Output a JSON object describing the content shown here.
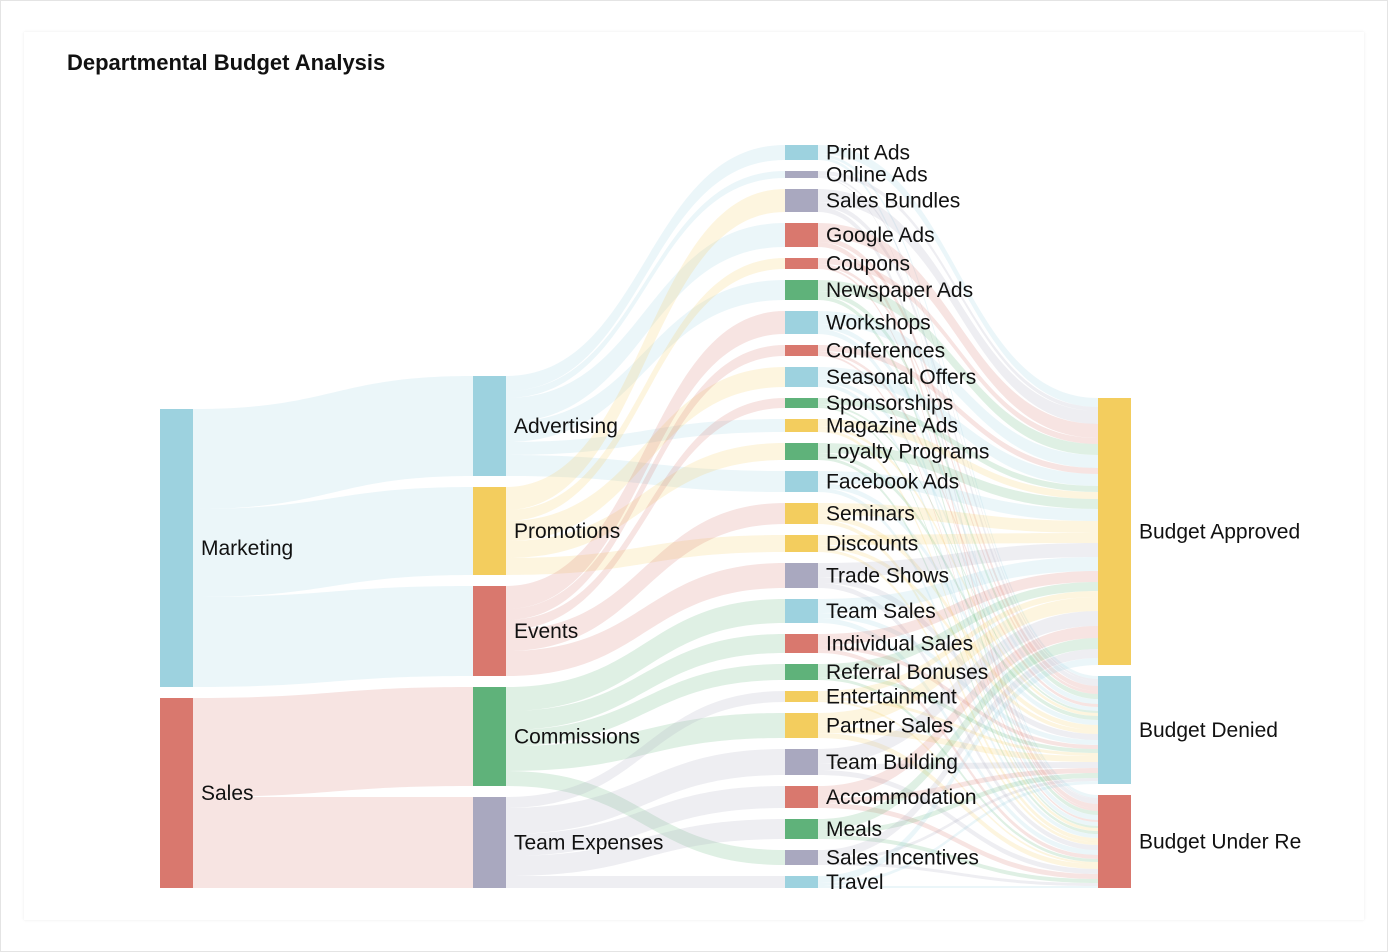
{
  "chart_data": {
    "type": "sankey",
    "title": "Departmental Budget Analysis",
    "nodes": [
      {
        "name": "Marketing",
        "color": "#9dd2df"
      },
      {
        "name": "Sales",
        "color": "#d9786e"
      },
      {
        "name": "Advertising",
        "color": "#9dd2df"
      },
      {
        "name": "Promotions",
        "color": "#f3cd5e"
      },
      {
        "name": "Events",
        "color": "#d9786e"
      },
      {
        "name": "Commissions",
        "color": "#5fb27a"
      },
      {
        "name": "Team Expenses",
        "color": "#a9a8bf"
      },
      {
        "name": "Print Ads",
        "color": "#9dd2df"
      },
      {
        "name": "Online Ads",
        "color": "#a9a8bf"
      },
      {
        "name": "Sales Bundles",
        "color": "#a9a8bf"
      },
      {
        "name": "Google Ads",
        "color": "#d9786e"
      },
      {
        "name": "Coupons",
        "color": "#d9786e"
      },
      {
        "name": "Newspaper Ads",
        "color": "#5fb27a"
      },
      {
        "name": "Workshops",
        "color": "#9dd2df"
      },
      {
        "name": "Conferences",
        "color": "#d9786e"
      },
      {
        "name": "Seasonal Offers",
        "color": "#9dd2df"
      },
      {
        "name": "Sponsorships",
        "color": "#5fb27a"
      },
      {
        "name": "Magazine Ads",
        "color": "#f3cd5e"
      },
      {
        "name": "Loyalty Programs",
        "color": "#5fb27a"
      },
      {
        "name": "Facebook Ads",
        "color": "#9dd2df"
      },
      {
        "name": "Seminars",
        "color": "#f3cd5e"
      },
      {
        "name": "Discounts",
        "color": "#f3cd5e"
      },
      {
        "name": "Trade Shows",
        "color": "#a9a8bf"
      },
      {
        "name": "Team Sales",
        "color": "#9dd2df"
      },
      {
        "name": "Individual Sales",
        "color": "#d9786e"
      },
      {
        "name": "Referral Bonuses",
        "color": "#5fb27a"
      },
      {
        "name": "Entertainment",
        "color": "#f3cd5e"
      },
      {
        "name": "Partner Sales",
        "color": "#f3cd5e"
      },
      {
        "name": "Team Building",
        "color": "#a9a8bf"
      },
      {
        "name": "Accommodation",
        "color": "#d9786e"
      },
      {
        "name": "Meals",
        "color": "#5fb27a"
      },
      {
        "name": "Sales Incentives",
        "color": "#a9a8bf"
      },
      {
        "name": "Travel",
        "color": "#9dd2df"
      },
      {
        "name": "Budget Approved",
        "color": "#f3cd5e"
      },
      {
        "name": "Budget Denied",
        "color": "#9dd2df"
      },
      {
        "name": "Budget Under Re",
        "color": "#d9786e"
      }
    ],
    "links": [
      {
        "source": "Marketing",
        "target": "Advertising",
        "value": 100
      },
      {
        "source": "Marketing",
        "target": "Promotions",
        "value": 88
      },
      {
        "source": "Marketing",
        "target": "Events",
        "value": 90
      },
      {
        "source": "Sales",
        "target": "Commissions",
        "value": 99
      },
      {
        "source": "Sales",
        "target": "Team Expenses",
        "value": 91
      },
      {
        "source": "Advertising",
        "target": "Print Ads",
        "value": 15
      },
      {
        "source": "Advertising",
        "target": "Online Ads",
        "value": 7
      },
      {
        "source": "Advertising",
        "target": "Google Ads",
        "value": 24
      },
      {
        "source": "Advertising",
        "target": "Newspaper Ads",
        "value": 20
      },
      {
        "source": "Advertising",
        "target": "Magazine Ads",
        "value": 13
      },
      {
        "source": "Advertising",
        "target": "Facebook Ads",
        "value": 21
      },
      {
        "source": "Promotions",
        "target": "Sales Bundles",
        "value": 23
      },
      {
        "source": "Promotions",
        "target": "Coupons",
        "value": 11
      },
      {
        "source": "Promotions",
        "target": "Seasonal Offers",
        "value": 20
      },
      {
        "source": "Promotions",
        "target": "Loyalty Programs",
        "value": 17
      },
      {
        "source": "Promotions",
        "target": "Discounts",
        "value": 17
      },
      {
        "source": "Events",
        "target": "Workshops",
        "value": 23
      },
      {
        "source": "Events",
        "target": "Conferences",
        "value": 11
      },
      {
        "source": "Events",
        "target": "Sponsorships",
        "value": 10
      },
      {
        "source": "Events",
        "target": "Seminars",
        "value": 21
      },
      {
        "source": "Events",
        "target": "Trade Shows",
        "value": 25
      },
      {
        "source": "Commissions",
        "target": "Team Sales",
        "value": 24
      },
      {
        "source": "Commissions",
        "target": "Individual Sales",
        "value": 19
      },
      {
        "source": "Commissions",
        "target": "Referral Bonuses",
        "value": 16
      },
      {
        "source": "Commissions",
        "target": "Partner Sales",
        "value": 25
      },
      {
        "source": "Commissions",
        "target": "Sales Incentives",
        "value": 15
      },
      {
        "source": "Team Expenses",
        "target": "Entertainment",
        "value": 11
      },
      {
        "source": "Team Expenses",
        "target": "Team Building",
        "value": 26
      },
      {
        "source": "Team Expenses",
        "target": "Accommodation",
        "value": 22
      },
      {
        "source": "Team Expenses",
        "target": "Meals",
        "value": 20
      },
      {
        "source": "Team Expenses",
        "target": "Travel",
        "value": 12
      },
      {
        "source": "Print Ads",
        "target": "Budget Approved",
        "value": 9
      },
      {
        "source": "Print Ads",
        "target": "Budget Denied",
        "value": 3
      },
      {
        "source": "Print Ads",
        "target": "Budget Under Re",
        "value": 3
      },
      {
        "source": "Online Ads",
        "target": "Budget Approved",
        "value": 4
      },
      {
        "source": "Online Ads",
        "target": "Budget Denied",
        "value": 2
      },
      {
        "source": "Online Ads",
        "target": "Budget Under Re",
        "value": 1
      },
      {
        "source": "Sales Bundles",
        "target": "Budget Approved",
        "value": 13
      },
      {
        "source": "Sales Bundles",
        "target": "Budget Denied",
        "value": 5
      },
      {
        "source": "Sales Bundles",
        "target": "Budget Under Re",
        "value": 5
      },
      {
        "source": "Google Ads",
        "target": "Budget Approved",
        "value": 14
      },
      {
        "source": "Google Ads",
        "target": "Budget Denied",
        "value": 5
      },
      {
        "source": "Google Ads",
        "target": "Budget Under Re",
        "value": 5
      },
      {
        "source": "Coupons",
        "target": "Budget Approved",
        "value": 6
      },
      {
        "source": "Coupons",
        "target": "Budget Denied",
        "value": 3
      },
      {
        "source": "Coupons",
        "target": "Budget Under Re",
        "value": 2
      },
      {
        "source": "Newspaper Ads",
        "target": "Budget Approved",
        "value": 11
      },
      {
        "source": "Newspaper Ads",
        "target": "Budget Denied",
        "value": 5
      },
      {
        "source": "Newspaper Ads",
        "target": "Budget Under Re",
        "value": 4
      },
      {
        "source": "Workshops",
        "target": "Budget Approved",
        "value": 13
      },
      {
        "source": "Workshops",
        "target": "Budget Denied",
        "value": 5
      },
      {
        "source": "Workshops",
        "target": "Budget Under Re",
        "value": 5
      },
      {
        "source": "Conferences",
        "target": "Budget Approved",
        "value": 6
      },
      {
        "source": "Conferences",
        "target": "Budget Denied",
        "value": 3
      },
      {
        "source": "Conferences",
        "target": "Budget Under Re",
        "value": 2
      },
      {
        "source": "Seasonal Offers",
        "target": "Budget Approved",
        "value": 12
      },
      {
        "source": "Seasonal Offers",
        "target": "Budget Denied",
        "value": 4
      },
      {
        "source": "Seasonal Offers",
        "target": "Budget Under Re",
        "value": 4
      },
      {
        "source": "Sponsorships",
        "target": "Budget Approved",
        "value": 6
      },
      {
        "source": "Sponsorships",
        "target": "Budget Denied",
        "value": 2
      },
      {
        "source": "Sponsorships",
        "target": "Budget Under Re",
        "value": 2
      },
      {
        "source": "Magazine Ads",
        "target": "Budget Approved",
        "value": 7
      },
      {
        "source": "Magazine Ads",
        "target": "Budget Denied",
        "value": 3
      },
      {
        "source": "Magazine Ads",
        "target": "Budget Under Re",
        "value": 3
      },
      {
        "source": "Loyalty Programs",
        "target": "Budget Approved",
        "value": 10
      },
      {
        "source": "Loyalty Programs",
        "target": "Budget Denied",
        "value": 4
      },
      {
        "source": "Loyalty Programs",
        "target": "Budget Under Re",
        "value": 3
      },
      {
        "source": "Facebook Ads",
        "target": "Budget Approved",
        "value": 12
      },
      {
        "source": "Facebook Ads",
        "target": "Budget Denied",
        "value": 5
      },
      {
        "source": "Facebook Ads",
        "target": "Budget Under Re",
        "value": 4
      },
      {
        "source": "Seminars",
        "target": "Budget Approved",
        "value": 12
      },
      {
        "source": "Seminars",
        "target": "Budget Denied",
        "value": 5
      },
      {
        "source": "Seminars",
        "target": "Budget Under Re",
        "value": 4
      },
      {
        "source": "Discounts",
        "target": "Budget Approved",
        "value": 10
      },
      {
        "source": "Discounts",
        "target": "Budget Denied",
        "value": 4
      },
      {
        "source": "Discounts",
        "target": "Budget Under Re",
        "value": 3
      },
      {
        "source": "Trade Shows",
        "target": "Budget Approved",
        "value": 14
      },
      {
        "source": "Trade Shows",
        "target": "Budget Denied",
        "value": 6
      },
      {
        "source": "Trade Shows",
        "target": "Budget Under Re",
        "value": 5
      },
      {
        "source": "Team Sales",
        "target": "Budget Approved",
        "value": 14
      },
      {
        "source": "Team Sales",
        "target": "Budget Denied",
        "value": 5
      },
      {
        "source": "Team Sales",
        "target": "Budget Under Re",
        "value": 5
      },
      {
        "source": "Individual Sales",
        "target": "Budget Approved",
        "value": 11
      },
      {
        "source": "Individual Sales",
        "target": "Budget Denied",
        "value": 4
      },
      {
        "source": "Individual Sales",
        "target": "Budget Under Re",
        "value": 4
      },
      {
        "source": "Referral Bonuses",
        "target": "Budget Approved",
        "value": 9
      },
      {
        "source": "Referral Bonuses",
        "target": "Budget Denied",
        "value": 4
      },
      {
        "source": "Referral Bonuses",
        "target": "Budget Under Re",
        "value": 3
      },
      {
        "source": "Entertainment",
        "target": "Budget Approved",
        "value": 6
      },
      {
        "source": "Entertainment",
        "target": "Budget Denied",
        "value": 3
      },
      {
        "source": "Entertainment",
        "target": "Budget Under Re",
        "value": 2
      },
      {
        "source": "Partner Sales",
        "target": "Budget Approved",
        "value": 14
      },
      {
        "source": "Partner Sales",
        "target": "Budget Denied",
        "value": 6
      },
      {
        "source": "Partner Sales",
        "target": "Budget Under Re",
        "value": 5
      },
      {
        "source": "Team Building",
        "target": "Budget Approved",
        "value": 15
      },
      {
        "source": "Team Building",
        "target": "Budget Denied",
        "value": 6
      },
      {
        "source": "Team Building",
        "target": "Budget Under Re",
        "value": 5
      },
      {
        "source": "Accommodation",
        "target": "Budget Approved",
        "value": 12
      },
      {
        "source": "Accommodation",
        "target": "Budget Denied",
        "value": 5
      },
      {
        "source": "Accommodation",
        "target": "Budget Under Re",
        "value": 5
      },
      {
        "source": "Meals",
        "target": "Budget Approved",
        "value": 11
      },
      {
        "source": "Meals",
        "target": "Budget Denied",
        "value": 5
      },
      {
        "source": "Meals",
        "target": "Budget Under Re",
        "value": 4
      },
      {
        "source": "Sales Incentives",
        "target": "Budget Approved",
        "value": 9
      },
      {
        "source": "Sales Incentives",
        "target": "Budget Denied",
        "value": 3
      },
      {
        "source": "Sales Incentives",
        "target": "Budget Under Re",
        "value": 3
      },
      {
        "source": "Travel",
        "target": "Budget Approved",
        "value": 7
      },
      {
        "source": "Travel",
        "target": "Budget Denied",
        "value": 3
      },
      {
        "source": "Travel",
        "target": "Budget Under Re",
        "value": 2
      }
    ]
  }
}
